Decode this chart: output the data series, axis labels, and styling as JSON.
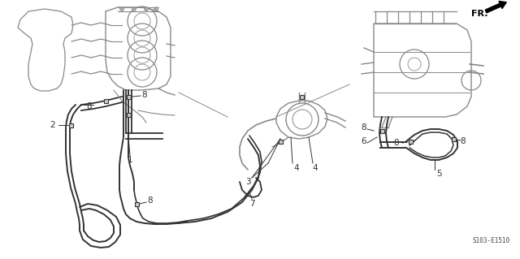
{
  "background_color": "#ffffff",
  "fig_width": 6.4,
  "fig_height": 3.19,
  "dpi": 100,
  "diagram_code": "S103-E1510",
  "fr_label": "FR.",
  "text_color": "#444444",
  "line_color": "#333333",
  "light_color": "#888888"
}
